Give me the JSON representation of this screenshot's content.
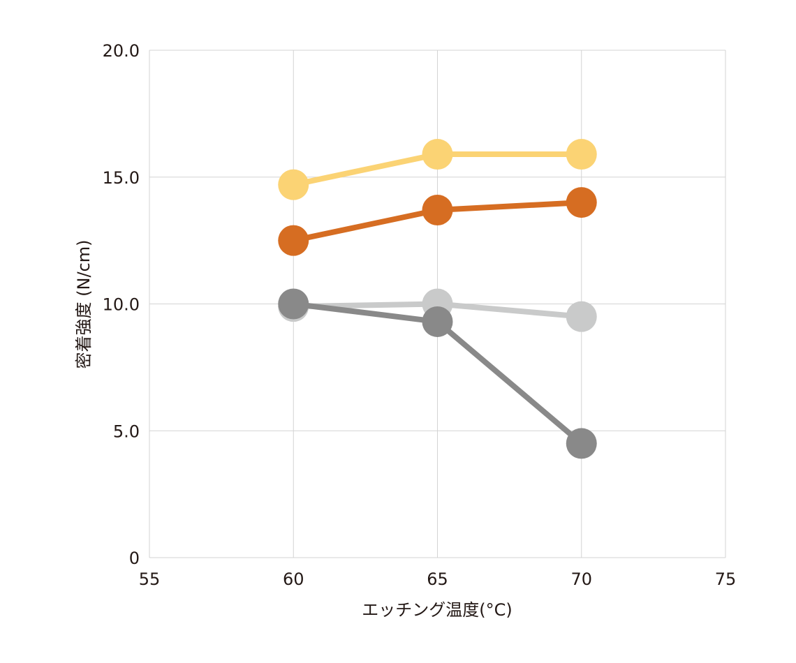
{
  "chart_data": {
    "type": "line",
    "title": "",
    "xlabel": "エッチング温度(°C)",
    "ylabel": "密着強度 (N/cm)",
    "xlim": [
      55,
      75
    ],
    "ylim": [
      0,
      20
    ],
    "xticks": [
      55,
      60,
      65,
      70,
      75
    ],
    "xtick_labels": [
      "55",
      "60",
      "65",
      "70",
      "75"
    ],
    "yticks": [
      0,
      5,
      10,
      15,
      20
    ],
    "ytick_labels": [
      "0",
      "5.0",
      "10.0",
      "15.0",
      "20.0"
    ],
    "grid": true,
    "x": [
      60,
      65,
      70
    ],
    "series": [
      {
        "name": "series-light-gray",
        "color": "#c9caca",
        "values": [
          9.9,
          10.0,
          9.5
        ]
      },
      {
        "name": "series-yellow",
        "color": "#fbd374",
        "values": [
          14.7,
          15.9,
          15.9
        ]
      },
      {
        "name": "series-orange",
        "color": "#d66d22",
        "values": [
          12.5,
          13.7,
          14.0
        ]
      },
      {
        "name": "series-dark-gray",
        "color": "#898989",
        "values": [
          10.0,
          9.3,
          4.5
        ]
      }
    ]
  }
}
